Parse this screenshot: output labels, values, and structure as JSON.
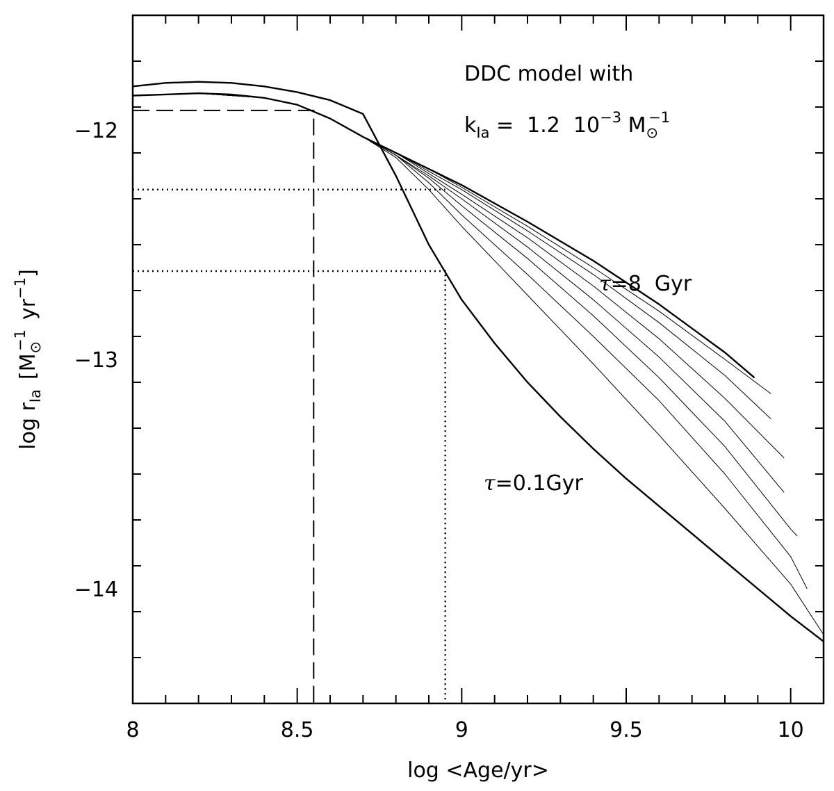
{
  "chart_data": {
    "type": "line",
    "title": "",
    "xlabel": "log <Age/yr>",
    "ylabel": {
      "pre": "log r",
      "sub": "Ia",
      "bracket_open": "[M",
      "sun_sub": "⊙",
      "sup1": "−1",
      "mid": "yr",
      "sup2": "−1",
      "bracket_close": "]"
    },
    "xlim": [
      8.0,
      10.1
    ],
    "ylim": [
      -14.5,
      -11.5
    ],
    "x_ticks": [
      {
        "value": 8.0,
        "label": "8"
      },
      {
        "value": 8.5,
        "label": "8.5"
      },
      {
        "value": 9.0,
        "label": "9"
      },
      {
        "value": 9.5,
        "label": "9.5"
      },
      {
        "value": 10.0,
        "label": "10"
      }
    ],
    "y_ticks": [
      {
        "value": -12,
        "label": "−12"
      },
      {
        "value": -13,
        "label": "−13"
      },
      {
        "value": -14,
        "label": "−14"
      }
    ],
    "annotations": {
      "model_line1": "DDC model with",
      "model_line2": {
        "k": "k",
        "k_sub": "Ia",
        "eq": " =  1.2  10",
        "exp": "−3",
        "m": " M",
        "m_sub": "⊙",
        "m_sup": "−1"
      },
      "tau_high": {
        "sym": "τ",
        "text": "=8  Gyr"
      },
      "tau_low": {
        "sym": "τ",
        "text": "=0.1Gyr"
      }
    },
    "series": [
      {
        "style": "thick",
        "x": [
          8.0,
          8.1,
          8.2,
          8.3,
          8.4,
          8.5,
          8.6,
          8.7,
          8.8,
          8.9,
          9.0,
          9.1,
          9.2,
          9.3,
          9.4,
          9.5,
          9.6,
          9.7,
          9.8,
          9.9,
          10.0,
          10.1
        ],
        "y": [
          -11.81,
          -11.795,
          -11.79,
          -11.795,
          -11.81,
          -11.835,
          -11.87,
          -11.93,
          -12.2,
          -12.5,
          -12.74,
          -12.93,
          -13.1,
          -13.25,
          -13.39,
          -13.52,
          -13.64,
          -13.76,
          -13.88,
          -14.0,
          -14.12,
          -14.23
        ]
      },
      {
        "style": "thin",
        "x": [
          8.0,
          8.2,
          8.4,
          8.5,
          8.6,
          8.7,
          8.8,
          8.9,
          9.0,
          9.2,
          9.4,
          9.6,
          9.8,
          10.0,
          10.1
        ],
        "y": [
          -11.85,
          -11.84,
          -11.86,
          -11.89,
          -11.95,
          -12.03,
          -12.12,
          -12.26,
          -12.42,
          -12.72,
          -13.02,
          -13.33,
          -13.65,
          -13.98,
          -14.2
        ]
      },
      {
        "style": "thin",
        "x": [
          8.0,
          8.2,
          8.4,
          8.5,
          8.6,
          8.7,
          8.8,
          8.9,
          9.0,
          9.2,
          9.4,
          9.6,
          9.8,
          10.0,
          10.05
        ],
        "y": [
          -11.85,
          -11.84,
          -11.86,
          -11.89,
          -11.95,
          -12.03,
          -12.11,
          -12.23,
          -12.37,
          -12.63,
          -12.9,
          -13.18,
          -13.5,
          -13.86,
          -14.0
        ]
      },
      {
        "style": "thin",
        "x": [
          8.0,
          8.2,
          8.4,
          8.5,
          8.6,
          8.7,
          8.8,
          8.9,
          9.0,
          9.2,
          9.4,
          9.6,
          9.8,
          10.0,
          10.02
        ],
        "y": [
          -11.85,
          -11.84,
          -11.86,
          -11.89,
          -11.95,
          -12.03,
          -12.11,
          -12.21,
          -12.33,
          -12.56,
          -12.81,
          -13.08,
          -13.38,
          -13.74,
          -13.77
        ]
      },
      {
        "style": "thin",
        "x": [
          8.0,
          8.2,
          8.4,
          8.5,
          8.6,
          8.7,
          8.8,
          8.9,
          9.0,
          9.2,
          9.4,
          9.6,
          9.8,
          9.98
        ],
        "y": [
          -11.85,
          -11.84,
          -11.86,
          -11.89,
          -11.95,
          -12.03,
          -12.11,
          -12.2,
          -12.3,
          -12.51,
          -12.74,
          -12.99,
          -13.27,
          -13.58
        ]
      },
      {
        "style": "thin",
        "x": [
          8.0,
          8.2,
          8.4,
          8.5,
          8.6,
          8.7,
          8.8,
          8.9,
          9.0,
          9.2,
          9.4,
          9.6,
          9.8,
          9.98
        ],
        "y": [
          -11.85,
          -11.84,
          -11.86,
          -11.89,
          -11.95,
          -12.03,
          -12.1,
          -12.19,
          -12.28,
          -12.47,
          -12.68,
          -12.91,
          -13.17,
          -13.43
        ]
      },
      {
        "style": "thin",
        "x": [
          8.0,
          8.2,
          8.4,
          8.5,
          8.6,
          8.7,
          8.8,
          8.9,
          9.0,
          9.2,
          9.4,
          9.6,
          9.8,
          9.94
        ],
        "y": [
          -11.85,
          -11.84,
          -11.86,
          -11.89,
          -11.95,
          -12.03,
          -12.1,
          -12.18,
          -12.26,
          -12.44,
          -12.63,
          -12.84,
          -13.07,
          -13.26
        ]
      },
      {
        "style": "thin",
        "x": [
          8.0,
          8.2,
          8.4,
          8.5,
          8.6,
          8.7,
          8.8,
          8.9,
          9.0,
          9.2,
          9.4,
          9.6,
          9.8,
          9.94
        ],
        "y": [
          -11.85,
          -11.84,
          -11.86,
          -11.89,
          -11.95,
          -12.03,
          -12.1,
          -12.17,
          -12.25,
          -12.42,
          -12.6,
          -12.79,
          -13.0,
          -13.15
        ]
      },
      {
        "style": "thick",
        "x": [
          8.0,
          8.1,
          8.2,
          8.3,
          8.4,
          8.5,
          8.6,
          8.7,
          8.8,
          8.9,
          9.0,
          9.2,
          9.4,
          9.6,
          9.8,
          9.89
        ],
        "y": [
          -11.85,
          -11.845,
          -11.84,
          -11.845,
          -11.86,
          -11.89,
          -11.95,
          -12.03,
          -12.1,
          -12.17,
          -12.24,
          -12.4,
          -12.57,
          -12.76,
          -12.97,
          -13.08
        ]
      }
    ],
    "reference_lines": [
      {
        "style": "dashed",
        "points": [
          [
            8.0,
            -11.915
          ],
          [
            8.55,
            -11.915
          ],
          [
            8.55,
            -14.5
          ]
        ]
      },
      {
        "style": "dotted",
        "points": [
          [
            8.0,
            -12.26
          ],
          [
            8.95,
            -12.26
          ]
        ]
      },
      {
        "style": "dotted",
        "points": [
          [
            8.0,
            -12.615
          ],
          [
            8.95,
            -12.615
          ],
          [
            8.95,
            -14.5
          ]
        ]
      }
    ]
  }
}
